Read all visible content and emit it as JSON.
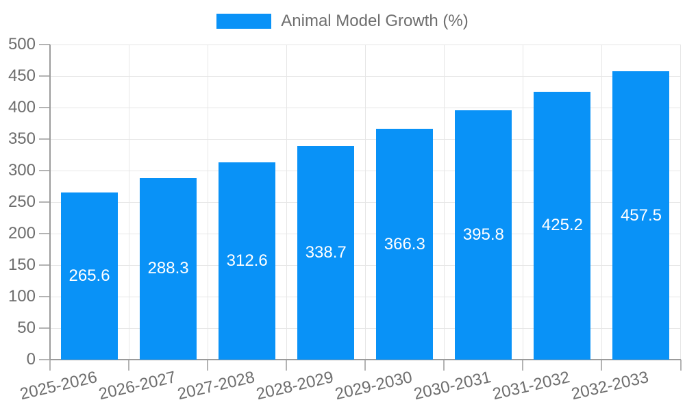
{
  "chart_data": {
    "type": "bar",
    "title": "",
    "xlabel": "",
    "ylabel": "",
    "categories": [
      "2025-2026",
      "2026-2027",
      "2027-2028",
      "2028-2029",
      "2029-2030",
      "2030-2031",
      "2031-2032",
      "2032-2033"
    ],
    "series": [
      {
        "name": "Animal Model Growth (%)",
        "values": [
          265.6,
          288.3,
          312.6,
          338.7,
          366.3,
          395.8,
          425.2,
          457.5
        ]
      }
    ],
    "ylim": [
      0,
      500
    ],
    "ytick_step": 50,
    "ytick_labels": [
      "0",
      "50",
      "100",
      "150",
      "200",
      "250",
      "300",
      "350",
      "400",
      "450",
      "500"
    ],
    "grid": true,
    "legend_position": "top",
    "bar_value_labels_visible": true
  },
  "style": {
    "bar_color": "#0992f7",
    "bar_label_color": "#ffffff",
    "tick_text_color": "#6e6e6e",
    "legend_text_color": "#6e6e6e",
    "grid_color": "#e6e6e6",
    "axis_line_color": "#9b9b9b",
    "tick_mark_color": "#b3b3b3",
    "background_color": "#ffffff"
  }
}
